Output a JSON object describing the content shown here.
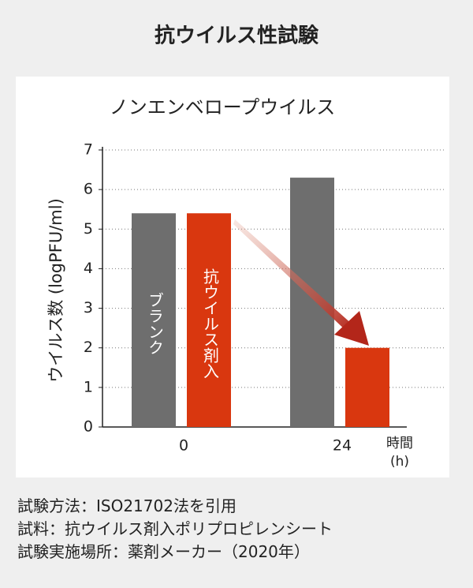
{
  "title": "抗ウイルス性試験",
  "chart_data": {
    "type": "bar",
    "title": "ノンエンベロープウイルス",
    "ylabel": "ウイルス数 (logPFU/ml)",
    "xlabel": "時間",
    "xlabel_unit": "(h)",
    "categories": [
      "0",
      "24"
    ],
    "series": [
      {
        "name": "ブランク",
        "color": "#6e6e6e",
        "values": [
          5.4,
          6.3
        ]
      },
      {
        "name": "抗ウイルス剤入",
        "color": "#d9370f",
        "values": [
          5.4,
          2.0
        ]
      }
    ],
    "ylim": [
      0,
      7
    ],
    "yticks": [
      0,
      1,
      2,
      3,
      4,
      5,
      6,
      7
    ],
    "grid": true
  },
  "notes": [
    "試験方法：ISO21702法を引用",
    "試料：抗ウイルス剤入ポリプロピレンシート",
    "試験実施場所：薬剤メーカー（2020年）"
  ]
}
